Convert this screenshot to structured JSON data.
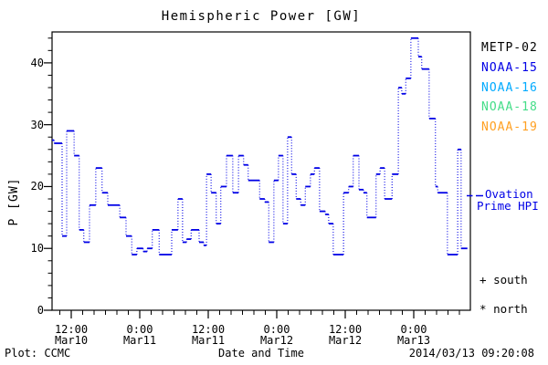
{
  "title": "Hemispheric Power [GW]",
  "y_axis": {
    "label": "P [GW]",
    "ticks": [
      "0",
      "10",
      "20",
      "30",
      "40"
    ],
    "tick_values": [
      0,
      10,
      20,
      30,
      40
    ],
    "minor_step": 2,
    "range": [
      0,
      45
    ]
  },
  "x_axis": {
    "label": "Date and Time",
    "ticks": [
      {
        "time": "12:00",
        "date": "Mar10",
        "t": 12
      },
      {
        "time": "0:00",
        "date": "Mar11",
        "t": 24
      },
      {
        "time": "12:00",
        "date": "Mar11",
        "t": 36
      },
      {
        "time": "0:00",
        "date": "Mar12",
        "t": 48
      },
      {
        "time": "12:00",
        "date": "Mar12",
        "t": 60
      },
      {
        "time": "0:00",
        "date": "Mar13",
        "t": 72
      }
    ],
    "minor_step": 2
  },
  "footer": {
    "left": "Plot: CCMC",
    "right": "2014/03/13 09:20:08"
  },
  "legend": {
    "satellites": [
      {
        "label": "METP-02",
        "color": "#000000"
      },
      {
        "label": "NOAA-15",
        "color": "#0000e6"
      },
      {
        "label": "NOAA-16",
        "color": "#00aaff"
      },
      {
        "label": "NOAA-18",
        "color": "#44dd88"
      },
      {
        "label": "NOAA-19",
        "color": "#ffa022"
      }
    ],
    "line_legend": {
      "line1": "Ovation",
      "line2": "Prime HPI",
      "color": "#0000e6"
    },
    "markers": [
      {
        "symbol": "+",
        "label": "south"
      },
      {
        "symbol": "*",
        "label": "north"
      }
    ]
  },
  "chart_data": {
    "type": "line",
    "title": "Hemispheric Power [GW]",
    "xlabel": "Date and Time",
    "ylabel": "P [GW]",
    "ylim": [
      0,
      45
    ],
    "x_unit": "hours since 2014-03-10 00:00 UT",
    "grid": false,
    "legend_position": "right",
    "series": [
      {
        "name": "Ovation Prime HPI",
        "style": "step-dotted",
        "color": "#0000e6",
        "t_start": 8.6,
        "t_end": 81.4,
        "steps": [
          [
            8.6,
            27.5
          ],
          [
            9.0,
            27
          ],
          [
            10.4,
            12
          ],
          [
            11.2,
            29
          ],
          [
            12.5,
            25
          ],
          [
            13.4,
            13
          ],
          [
            14.2,
            11
          ],
          [
            15.2,
            17
          ],
          [
            16.3,
            23
          ],
          [
            17.4,
            19
          ],
          [
            18.4,
            17
          ],
          [
            20.5,
            15
          ],
          [
            21.6,
            12
          ],
          [
            22.6,
            9
          ],
          [
            23.5,
            10
          ],
          [
            24.6,
            9.5
          ],
          [
            25.3,
            10
          ],
          [
            26.2,
            13
          ],
          [
            27.4,
            9
          ],
          [
            29.6,
            13
          ],
          [
            30.7,
            18
          ],
          [
            31.5,
            11
          ],
          [
            32.2,
            11.5
          ],
          [
            33.0,
            13
          ],
          [
            34.4,
            11
          ],
          [
            35.2,
            10.5
          ],
          [
            35.7,
            22
          ],
          [
            36.5,
            19
          ],
          [
            37.4,
            14
          ],
          [
            38.2,
            20
          ],
          [
            39.2,
            25
          ],
          [
            40.3,
            19
          ],
          [
            41.3,
            25
          ],
          [
            42.2,
            23.5
          ],
          [
            43.0,
            21
          ],
          [
            45.0,
            18
          ],
          [
            45.9,
            17.5
          ],
          [
            46.6,
            11
          ],
          [
            47.5,
            21
          ],
          [
            48.3,
            25
          ],
          [
            49.1,
            14
          ],
          [
            49.9,
            28
          ],
          [
            50.6,
            22
          ],
          [
            51.4,
            18
          ],
          [
            52.2,
            17
          ],
          [
            53.0,
            20
          ],
          [
            53.9,
            22
          ],
          [
            54.6,
            23
          ],
          [
            55.5,
            16
          ],
          [
            56.5,
            15.5
          ],
          [
            57.1,
            14
          ],
          [
            57.9,
            9
          ],
          [
            59.7,
            19
          ],
          [
            60.6,
            20
          ],
          [
            61.4,
            25
          ],
          [
            62.4,
            19.5
          ],
          [
            63.2,
            19
          ],
          [
            63.8,
            15
          ],
          [
            65.4,
            22
          ],
          [
            66.1,
            23
          ],
          [
            66.9,
            18
          ],
          [
            68.2,
            22
          ],
          [
            69.3,
            36
          ],
          [
            69.9,
            35
          ],
          [
            70.6,
            37.5
          ],
          [
            71.5,
            44
          ],
          [
            72.8,
            41
          ],
          [
            73.4,
            39
          ],
          [
            74.7,
            31
          ],
          [
            75.8,
            20
          ],
          [
            76.2,
            19
          ],
          [
            77.9,
            9
          ],
          [
            79.7,
            26
          ],
          [
            80.3,
            10
          ]
        ]
      }
    ]
  }
}
